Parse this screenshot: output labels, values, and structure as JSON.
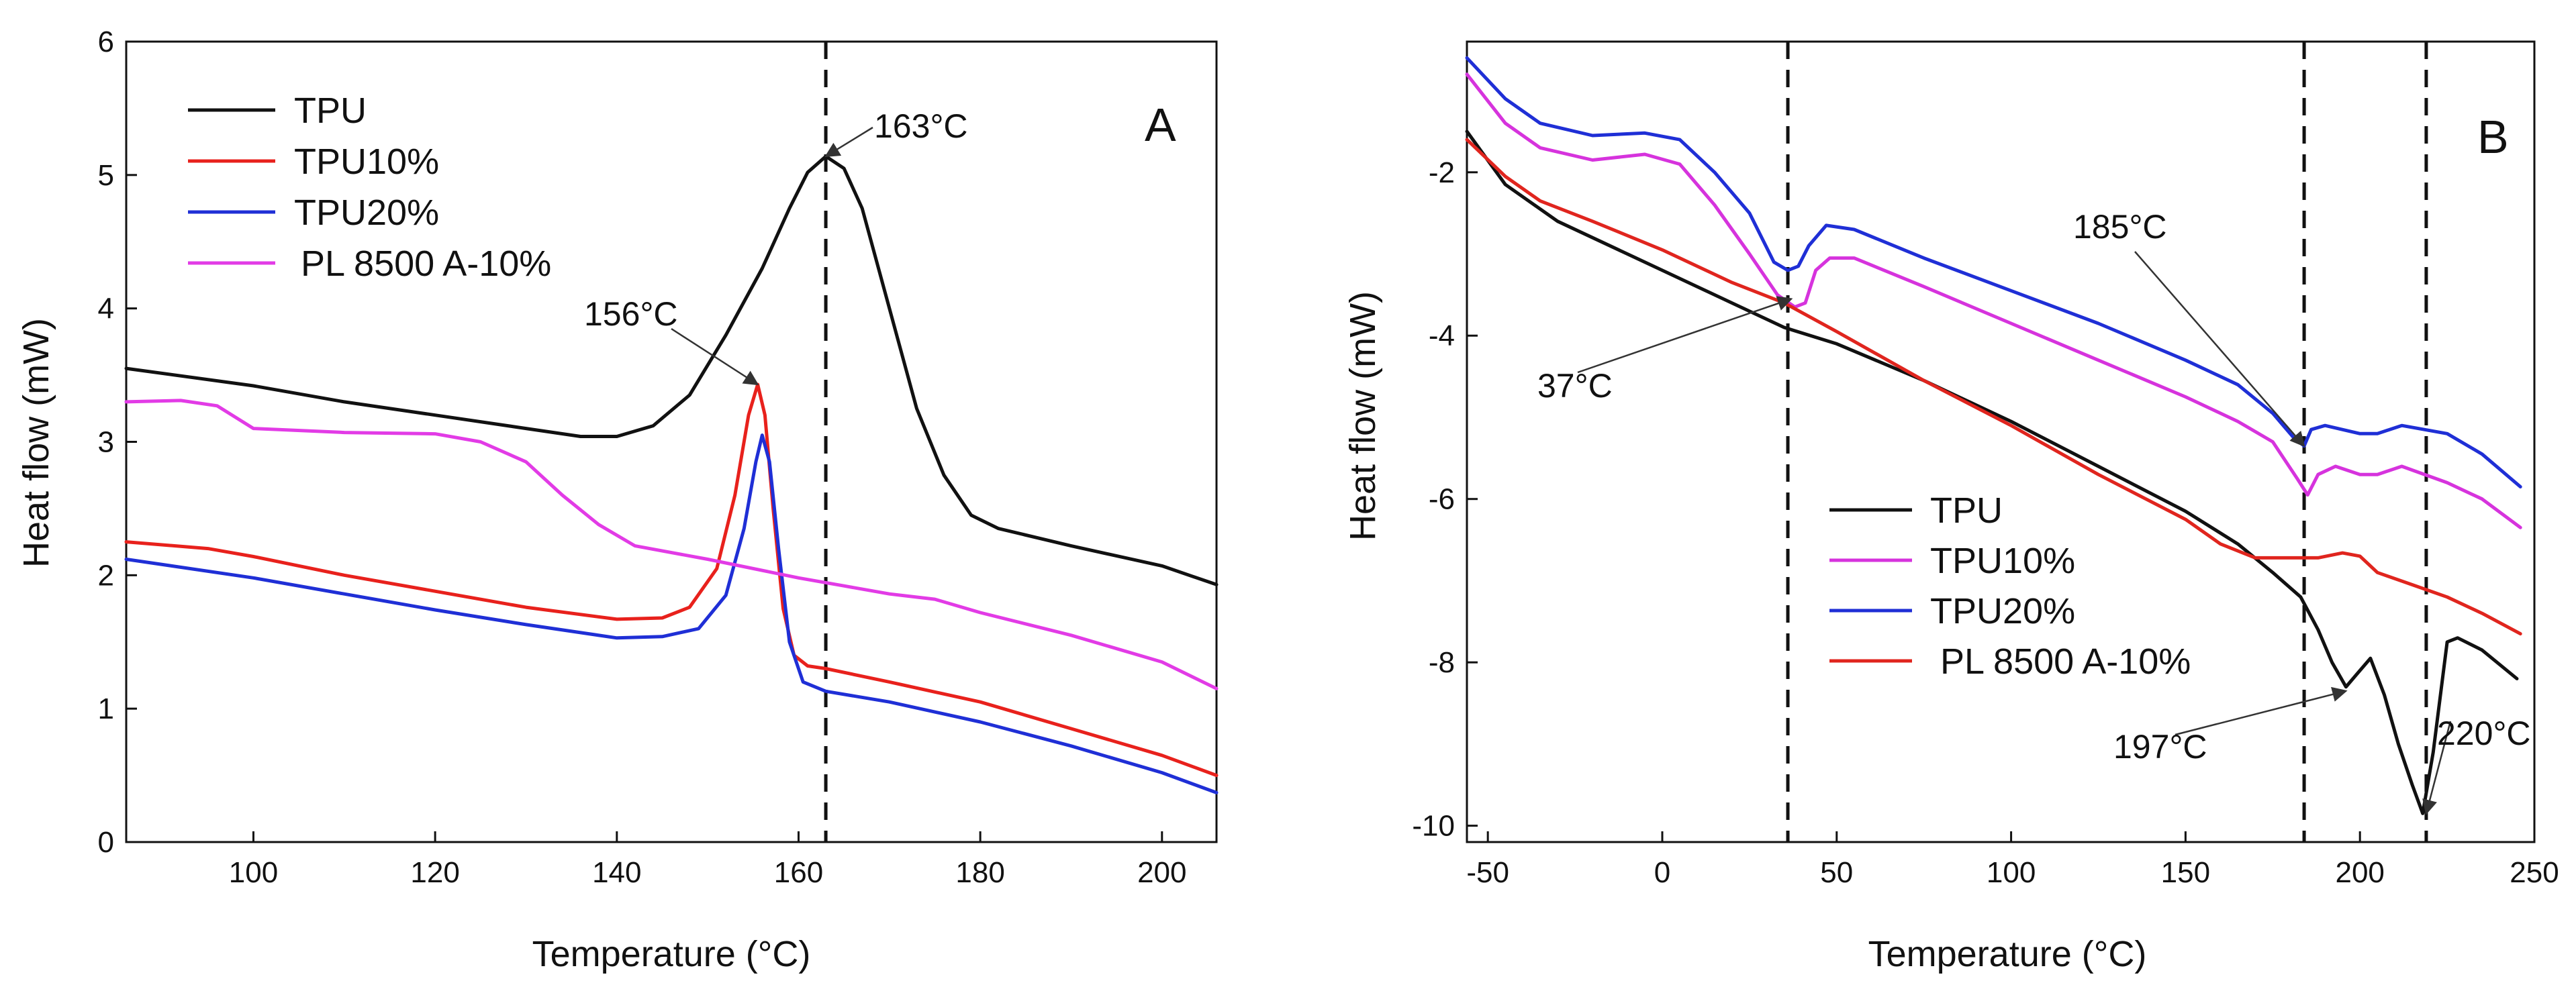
{
  "chart_data": [
    {
      "panel": "A",
      "type": "line",
      "xlabel": "Temperature",
      "xlabel_unit": "(°C)",
      "ylabel": "Heat flow (mW)",
      "xlim": [
        86,
        206
      ],
      "ylim": [
        0,
        6
      ],
      "xticks": [
        100,
        120,
        140,
        160,
        180,
        200
      ],
      "yticks": [
        0,
        1,
        2,
        3,
        4,
        5,
        6
      ],
      "legend_position": "top-left",
      "series": [
        {
          "name": "TPU",
          "color": "#111111",
          "points": [
            [
              86,
              3.55
            ],
            [
              100,
              3.42
            ],
            [
              110,
              3.3
            ],
            [
              120,
              3.2
            ],
            [
              130,
              3.1
            ],
            [
              136,
              3.04
            ],
            [
              140,
              3.04
            ],
            [
              144,
              3.12
            ],
            [
              148,
              3.35
            ],
            [
              152,
              3.8
            ],
            [
              156,
              4.3
            ],
            [
              159,
              4.75
            ],
            [
              161,
              5.02
            ],
            [
              163,
              5.14
            ],
            [
              165,
              5.05
            ],
            [
              167,
              4.75
            ],
            [
              170,
              4.0
            ],
            [
              173,
              3.25
            ],
            [
              176,
              2.75
            ],
            [
              179,
              2.45
            ],
            [
              182,
              2.35
            ],
            [
              190,
              2.22
            ],
            [
              200,
              2.07
            ],
            [
              206,
              1.93
            ]
          ]
        },
        {
          "name": "TPU10%",
          "color": "#e8211c",
          "points": [
            [
              86,
              2.25
            ],
            [
              95,
              2.2
            ],
            [
              100,
              2.14
            ],
            [
              110,
              2.0
            ],
            [
              120,
              1.88
            ],
            [
              130,
              1.76
            ],
            [
              140,
              1.67
            ],
            [
              145,
              1.68
            ],
            [
              148,
              1.76
            ],
            [
              151,
              2.05
            ],
            [
              153,
              2.6
            ],
            [
              154.5,
              3.2
            ],
            [
              155.5,
              3.43
            ],
            [
              156.3,
              3.2
            ],
            [
              157.2,
              2.5
            ],
            [
              158.3,
              1.75
            ],
            [
              159.5,
              1.4
            ],
            [
              161,
              1.32
            ],
            [
              163,
              1.3
            ],
            [
              170,
              1.2
            ],
            [
              180,
              1.05
            ],
            [
              190,
              0.85
            ],
            [
              200,
              0.65
            ],
            [
              206,
              0.5
            ]
          ]
        },
        {
          "name": "TPU20%",
          "color": "#1f2fd6",
          "points": [
            [
              86,
              2.12
            ],
            [
              100,
              1.98
            ],
            [
              110,
              1.86
            ],
            [
              120,
              1.74
            ],
            [
              130,
              1.63
            ],
            [
              140,
              1.53
            ],
            [
              145,
              1.54
            ],
            [
              149,
              1.6
            ],
            [
              152,
              1.85
            ],
            [
              154,
              2.35
            ],
            [
              155.3,
              2.85
            ],
            [
              156,
              3.05
            ],
            [
              156.8,
              2.85
            ],
            [
              157.8,
              2.2
            ],
            [
              159,
              1.5
            ],
            [
              160.5,
              1.2
            ],
            [
              163,
              1.13
            ],
            [
              170,
              1.05
            ],
            [
              180,
              0.9
            ],
            [
              190,
              0.72
            ],
            [
              200,
              0.52
            ],
            [
              206,
              0.37
            ]
          ]
        },
        {
          "name": "PL 8500 A-10%",
          "color": "#e23be6",
          "points": [
            [
              86,
              3.3
            ],
            [
              92,
              3.31
            ],
            [
              96,
              3.27
            ],
            [
              100,
              3.1
            ],
            [
              110,
              3.07
            ],
            [
              120,
              3.06
            ],
            [
              125,
              3.0
            ],
            [
              130,
              2.85
            ],
            [
              134,
              2.6
            ],
            [
              138,
              2.38
            ],
            [
              142,
              2.22
            ],
            [
              150,
              2.12
            ],
            [
              160,
              1.98
            ],
            [
              165,
              1.92
            ],
            [
              170,
              1.86
            ],
            [
              175,
              1.82
            ],
            [
              180,
              1.72
            ],
            [
              190,
              1.55
            ],
            [
              200,
              1.35
            ],
            [
              206,
              1.15
            ]
          ]
        }
      ],
      "reference_lines": [
        {
          "x": 163
        }
      ],
      "annotations": [
        {
          "text": "163",
          "unit": "°C",
          "target": [
            163,
            5.14
          ]
        },
        {
          "text": "156",
          "unit": "°C",
          "target": [
            155.5,
            3.43
          ]
        }
      ]
    },
    {
      "panel": "B",
      "type": "line",
      "xlabel": "Temperature",
      "xlabel_unit": "(°C)",
      "ylabel": "Heat flow (mW)",
      "xlim": [
        -56,
        250
      ],
      "ylim": [
        -10.2,
        -0.4
      ],
      "xticks": [
        -50,
        0,
        50,
        100,
        150,
        200,
        250
      ],
      "yticks": [
        -10,
        -8,
        -6,
        -4,
        -2
      ],
      "legend_position": "bottom-center",
      "series": [
        {
          "name": "TPU",
          "color": "#111111",
          "points": [
            [
              -56,
              -1.5
            ],
            [
              -45,
              -2.15
            ],
            [
              -30,
              -2.6
            ],
            [
              -10,
              -3.0
            ],
            [
              0,
              -3.2
            ],
            [
              20,
              -3.6
            ],
            [
              35,
              -3.9
            ],
            [
              50,
              -4.1
            ],
            [
              75,
              -4.55
            ],
            [
              100,
              -5.05
            ],
            [
              125,
              -5.6
            ],
            [
              150,
              -6.15
            ],
            [
              165,
              -6.55
            ],
            [
              175,
              -6.9
            ],
            [
              183,
              -7.2
            ],
            [
              188,
              -7.6
            ],
            [
              192,
              -8.0
            ],
            [
              196,
              -8.3
            ],
            [
              199,
              -8.15
            ],
            [
              203,
              -7.95
            ],
            [
              207,
              -8.4
            ],
            [
              211,
              -9.0
            ],
            [
              215,
              -9.5
            ],
            [
              218,
              -9.85
            ],
            [
              221,
              -9.1
            ],
            [
              225,
              -7.75
            ],
            [
              228,
              -7.7
            ],
            [
              235,
              -7.85
            ],
            [
              245,
              -8.2
            ]
          ]
        },
        {
          "name": "TPU10%",
          "color": "#d633dd",
          "points": [
            [
              -56,
              -0.8
            ],
            [
              -45,
              -1.4
            ],
            [
              -35,
              -1.7
            ],
            [
              -20,
              -1.85
            ],
            [
              -5,
              -1.78
            ],
            [
              5,
              -1.9
            ],
            [
              15,
              -2.4
            ],
            [
              25,
              -3.0
            ],
            [
              33,
              -3.5
            ],
            [
              38,
              -3.65
            ],
            [
              41,
              -3.6
            ],
            [
              44,
              -3.2
            ],
            [
              48,
              -3.05
            ],
            [
              55,
              -3.05
            ],
            [
              75,
              -3.4
            ],
            [
              100,
              -3.85
            ],
            [
              125,
              -4.3
            ],
            [
              150,
              -4.75
            ],
            [
              165,
              -5.05
            ],
            [
              175,
              -5.3
            ],
            [
              182,
              -5.75
            ],
            [
              185,
              -5.95
            ],
            [
              188,
              -5.7
            ],
            [
              193,
              -5.6
            ],
            [
              200,
              -5.7
            ],
            [
              205,
              -5.7
            ],
            [
              212,
              -5.6
            ],
            [
              225,
              -5.8
            ],
            [
              235,
              -6.0
            ],
            [
              246,
              -6.35
            ]
          ]
        },
        {
          "name": "TPU20%",
          "color": "#1f2fd6",
          "points": [
            [
              -56,
              -0.6
            ],
            [
              -45,
              -1.1
            ],
            [
              -35,
              -1.4
            ],
            [
              -20,
              -1.55
            ],
            [
              -5,
              -1.52
            ],
            [
              5,
              -1.6
            ],
            [
              15,
              -2.0
            ],
            [
              25,
              -2.5
            ],
            [
              32,
              -3.1
            ],
            [
              36,
              -3.2
            ],
            [
              39,
              -3.15
            ],
            [
              42,
              -2.9
            ],
            [
              47,
              -2.65
            ],
            [
              55,
              -2.7
            ],
            [
              75,
              -3.05
            ],
            [
              100,
              -3.45
            ],
            [
              125,
              -3.85
            ],
            [
              150,
              -4.3
            ],
            [
              165,
              -4.6
            ],
            [
              175,
              -4.95
            ],
            [
              181,
              -5.25
            ],
            [
              184,
              -5.35
            ],
            [
              186,
              -5.15
            ],
            [
              190,
              -5.1
            ],
            [
              200,
              -5.2
            ],
            [
              205,
              -5.2
            ],
            [
              212,
              -5.1
            ],
            [
              225,
              -5.2
            ],
            [
              235,
              -5.45
            ],
            [
              246,
              -5.85
            ]
          ]
        },
        {
          "name": "PL 8500 A-10%",
          "color": "#e0251e",
          "points": [
            [
              -56,
              -1.6
            ],
            [
              -45,
              -2.05
            ],
            [
              -35,
              -2.35
            ],
            [
              -20,
              -2.6
            ],
            [
              0,
              -2.95
            ],
            [
              20,
              -3.35
            ],
            [
              35,
              -3.6
            ],
            [
              50,
              -3.95
            ],
            [
              75,
              -4.55
            ],
            [
              100,
              -5.1
            ],
            [
              125,
              -5.7
            ],
            [
              150,
              -6.25
            ],
            [
              160,
              -6.55
            ],
            [
              170,
              -6.72
            ],
            [
              180,
              -6.72
            ],
            [
              188,
              -6.72
            ],
            [
              195,
              -6.66
            ],
            [
              200,
              -6.7
            ],
            [
              205,
              -6.9
            ],
            [
              215,
              -7.05
            ],
            [
              225,
              -7.2
            ],
            [
              235,
              -7.4
            ],
            [
              246,
              -7.65
            ]
          ]
        }
      ],
      "reference_lines": [
        {
          "x": 36
        },
        {
          "x": 184
        },
        {
          "x": 219
        }
      ],
      "annotations": [
        {
          "text": "185",
          "unit": "°C",
          "target": [
            184,
            -5.35
          ]
        },
        {
          "text": "37",
          "unit": "°C",
          "target": [
            37,
            -3.55
          ]
        },
        {
          "text": "197",
          "unit": "°C",
          "target": [
            196,
            -8.35
          ]
        },
        {
          "text": "220",
          "unit": "°C",
          "target": [
            219,
            -9.85
          ]
        }
      ]
    }
  ]
}
